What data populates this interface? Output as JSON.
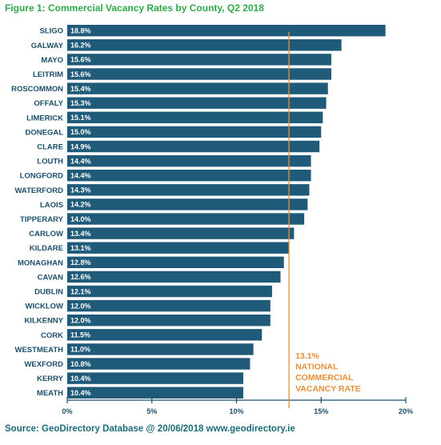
{
  "header": {
    "title": "Figure 1: Commercial Vacancy Rates by County, Q2 2018"
  },
  "footer": {
    "source": "Source: GeoDirectory Database @ 20/06/2018 www.geodirectory.ie"
  },
  "colors": {
    "bar": "#1f5a78",
    "axis": "#1b4f6b",
    "reference": "#e3903a",
    "title": "#2ea84a",
    "source": "#1d6a7a"
  },
  "chart_data": {
    "type": "bar",
    "orientation": "horizontal",
    "categories": [
      "SLIGO",
      "GALWAY",
      "MAYO",
      "LEITRIM",
      "ROSCOMMON",
      "OFFALY",
      "LIMERICK",
      "DONEGAL",
      "CLARE",
      "LOUTH",
      "LONGFORD",
      "WATERFORD",
      "LAOIS",
      "TIPPERARY",
      "CARLOW",
      "KILDARE",
      "MONAGHAN",
      "CAVAN",
      "DUBLIN",
      "WICKLOW",
      "KILKENNY",
      "CORK",
      "WESTMEATH",
      "WEXFORD",
      "KERRY",
      "MEATH"
    ],
    "values": [
      18.8,
      16.2,
      15.6,
      15.6,
      15.4,
      15.3,
      15.1,
      15.0,
      14.9,
      14.4,
      14.4,
      14.3,
      14.2,
      14.0,
      13.4,
      13.1,
      12.8,
      12.6,
      12.1,
      12.0,
      12.0,
      11.5,
      11.0,
      10.8,
      10.4,
      10.4
    ],
    "value_labels": [
      "18.8%",
      "16.2%",
      "15.6%",
      "15.6%",
      "15.4%",
      "15.3%",
      "15.1%",
      "15.0%",
      "14.9%",
      "14.4%",
      "14.4%",
      "14.3%",
      "14.2%",
      "14.0%",
      "13.4%",
      "13.1%",
      "12.8%",
      "12.6%",
      "12.1%",
      "12.0%",
      "12.0%",
      "11.5%",
      "11.0%",
      "10.8%",
      "10.4%",
      "10.4%"
    ],
    "xlim": [
      0,
      20
    ],
    "xticks": [
      0,
      5,
      10,
      15,
      20
    ],
    "xtick_labels": [
      "0%",
      "5%",
      "10%",
      "15%",
      "20%"
    ],
    "reference_line": {
      "value": 13.1,
      "label_lines": [
        "13.1%",
        "NATIONAL",
        "COMMERCIAL",
        "VACANCY RATE"
      ]
    },
    "grid": false,
    "legend": "none"
  }
}
